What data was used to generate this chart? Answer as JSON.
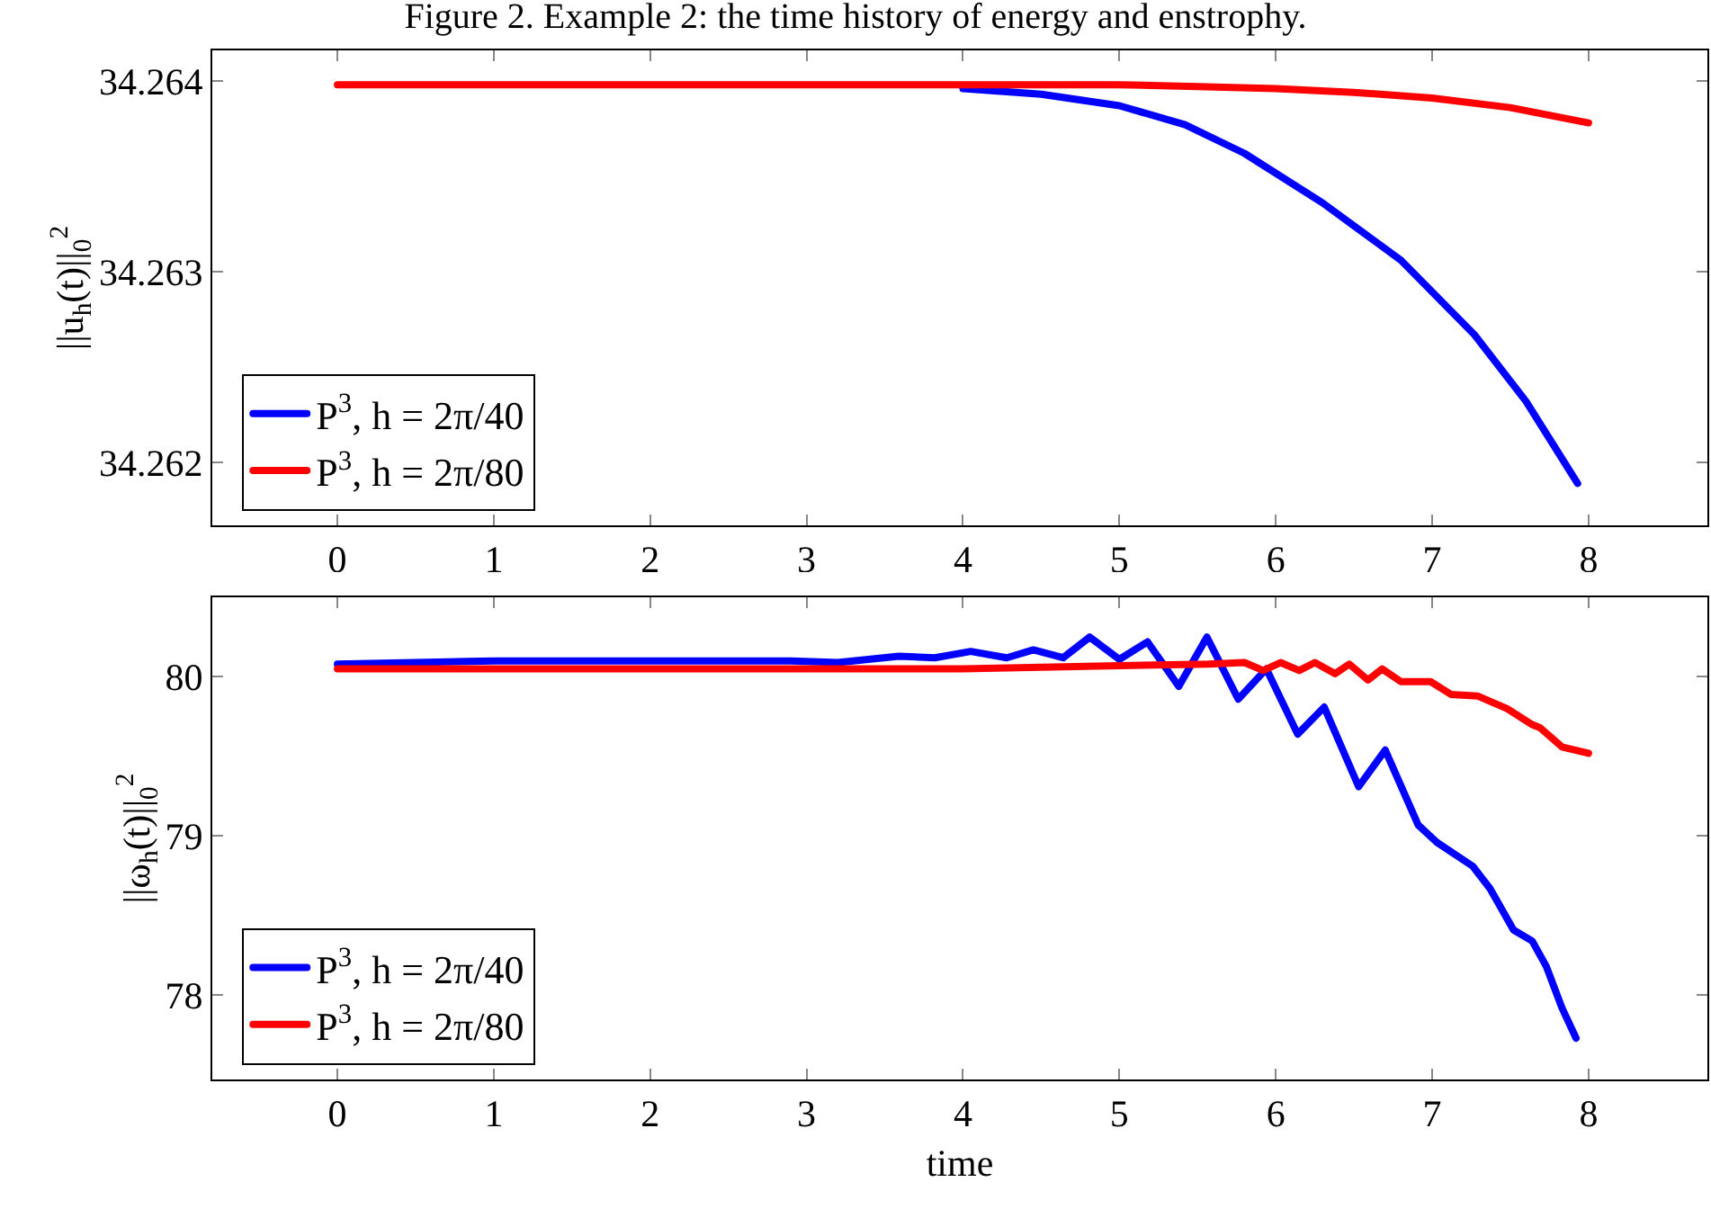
{
  "chart_data": [
    {
      "type": "line",
      "title": "Figure 2. Example 2: the time history of energy and enstrophy.",
      "ylabel": "||u$_{h}$(t)||$_{0}$$^{2}$",
      "xlim": [
        -0.8,
        8.76
      ],
      "xticks": [
        0,
        1,
        2,
        3,
        4,
        5,
        6,
        7,
        8
      ],
      "ylim": [
        34.26167,
        34.26416
      ],
      "yticks": [
        34.262,
        34.263,
        34.264
      ],
      "grid": false,
      "legend": "bottom left",
      "line_style": "solid",
      "marker": "none",
      "series": [
        {
          "name": "P$^{3}$, h = 2π/40",
          "color": "#0000ff",
          "x": [
            4,
            4.5,
            5,
            5.42,
            5.8,
            6.3,
            6.8,
            7.27,
            7.6,
            7.93
          ],
          "values": [
            34.26396,
            34.26393,
            34.26387,
            34.26377,
            34.26362,
            34.26336,
            34.26306,
            34.26267,
            34.26232,
            34.26189
          ]
        },
        {
          "name": "P$^{3}$, h = 2π/80",
          "color": "#ff0000",
          "x": [
            0,
            1,
            2,
            3,
            4,
            5,
            5.5,
            6,
            6.5,
            7,
            7.5,
            8
          ],
          "values": [
            34.26398,
            34.26398,
            34.26398,
            34.26398,
            34.26398,
            34.26398,
            34.26397,
            34.26396,
            34.26394,
            34.26391,
            34.26386,
            34.26378
          ]
        }
      ]
    },
    {
      "type": "line",
      "xlabel": "time",
      "ylabel": "||ω$_{h}$(t)||$_{0}$$^{2}$",
      "xlim": [
        -0.8,
        8.76
      ],
      "xticks": [
        0,
        1,
        2,
        3,
        4,
        5,
        6,
        7,
        8
      ],
      "ylim": [
        77.47,
        80.5
      ],
      "yticks": [
        78,
        79,
        80
      ],
      "grid": false,
      "legend": "bottom left",
      "line_style": "solid",
      "marker": "none",
      "series": [
        {
          "name": "P$^{3}$, h = 2π/40",
          "color": "#0000ff",
          "x": [
            0,
            1,
            2,
            2.9,
            3.2,
            3.59,
            3.82,
            4.05,
            4.28,
            4.45,
            4.64,
            4.81,
            5.0,
            5.18,
            5.38,
            5.56,
            5.76,
            5.94,
            6.14,
            6.31,
            6.53,
            6.7,
            6.91,
            7.03,
            7.26,
            7.37,
            7.52,
            7.64,
            7.73,
            7.83,
            7.92
          ],
          "values": [
            80.08,
            80.1,
            80.1,
            80.1,
            80.09,
            80.13,
            80.12,
            80.16,
            80.12,
            80.17,
            80.12,
            80.25,
            80.11,
            80.22,
            79.94,
            80.25,
            79.86,
            80.05,
            79.64,
            79.81,
            79.31,
            79.54,
            79.07,
            78.96,
            78.81,
            78.67,
            78.41,
            78.34,
            78.18,
            77.92,
            77.73
          ]
        },
        {
          "name": "P$^{3}$, h = 2π/80",
          "color": "#ff0000",
          "x": [
            0,
            2,
            4,
            5,
            5.57,
            5.8,
            5.92,
            6.03,
            6.15,
            6.25,
            6.38,
            6.47,
            6.59,
            6.68,
            6.8,
            6.99,
            7.12,
            7.29,
            7.48,
            7.64,
            7.69,
            7.83,
            8.0
          ],
          "values": [
            80.05,
            80.05,
            80.05,
            80.07,
            80.08,
            80.09,
            80.04,
            80.09,
            80.04,
            80.09,
            80.02,
            80.08,
            79.98,
            80.05,
            79.97,
            79.97,
            79.89,
            79.88,
            79.8,
            79.7,
            79.68,
            79.56,
            79.52
          ]
        }
      ]
    }
  ]
}
